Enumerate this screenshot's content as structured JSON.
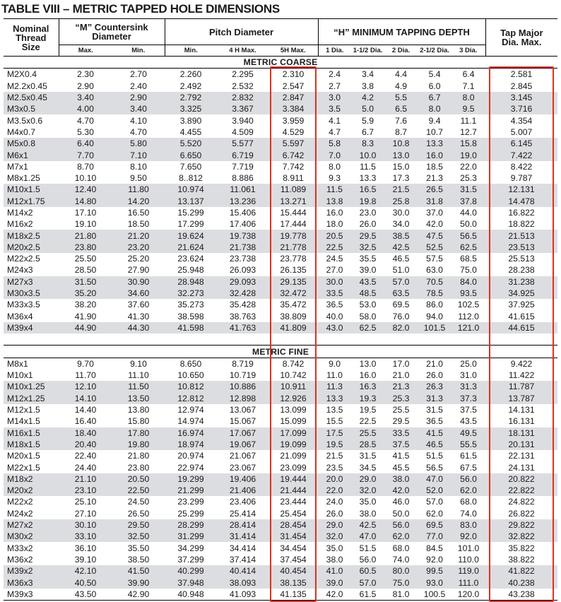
{
  "title": "TABLE VIII – METRIC TAPPED HOLE DIMENSIONS",
  "headers": {
    "nominal": "Nominal Thread Size",
    "countersink": "“M” Countersink Diameter",
    "pitch": "Pitch Diameter",
    "tapping": "“H” MINIMUM TAPPING DEPTH",
    "tap_major": "Tap Major Dia. Max.",
    "sub": [
      "Max.",
      "Min.",
      "Min.",
      "4 H Max.",
      "5H Max.",
      "1 Dia.",
      "1-1/2 Dia.",
      "2 Dia.",
      "2-1/2 Dia.",
      "3 Dia."
    ]
  },
  "sections": [
    {
      "label": "METRIC COARSE",
      "rows": [
        [
          "M2X0.4",
          "2.30",
          "2.70",
          "2.260",
          "2.295",
          "2.310",
          "2.4",
          "3.4",
          "4.4",
          "5.4",
          "6.4",
          "2.581"
        ],
        [
          "M2.2x0.45",
          "2.90",
          "2.40",
          "2.492",
          "2.532",
          "2.547",
          "2.7",
          "3.8",
          "4.9",
          "6.0",
          "7.1",
          "2.845"
        ],
        [
          "M2.5x0.45",
          "3.40",
          "2.90",
          "2.792",
          "2.832",
          "2.847",
          "3.0",
          "4.2",
          "5.5",
          "6.7",
          "8.0",
          "3.145"
        ],
        [
          "M3x0.5",
          "4.00",
          "3.40",
          "3.325",
          "3.367",
          "3.384",
          "3.5",
          "5.0",
          "6.5",
          "8.0",
          "9.5",
          "3.716"
        ],
        [
          "M3.5x0.6",
          "4.70",
          "4.10",
          "3.890",
          "3.940",
          "3.959",
          "4.1",
          "5.9",
          "7.6",
          "9.4",
          "11.1",
          "4.354"
        ],
        [
          "M4x0.7",
          "5.30",
          "4.70",
          "4.455",
          "4.509",
          "4.529",
          "4.7",
          "6.7",
          "8.7",
          "10.7",
          "12.7",
          "5.007"
        ],
        [
          "M5x0.8",
          "6.40",
          "5.80",
          "5.520",
          "5.577",
          "5.597",
          "5.8",
          "8.3",
          "10.8",
          "13.3",
          "15.8",
          "6.145"
        ],
        [
          "M6x1",
          "7.70",
          "7.10",
          "6.650",
          "6.719",
          "6.742",
          "7.0",
          "10.0",
          "13.0",
          "16.0",
          "19.0",
          "7.422"
        ],
        [
          "M7x1",
          "8.70",
          "8.10",
          "7.650",
          "7.719",
          "7.742",
          "8.0",
          "11.5",
          "15.0",
          "18.5",
          "22.0",
          "8.422"
        ],
        [
          "M8x1.25",
          "10.10",
          "9.50",
          "8..812",
          "8.886",
          "8.911",
          "9.3",
          "13.3",
          "17.3",
          "21.3",
          "25.3",
          "9.787"
        ],
        [
          "M10x1.5",
          "12.40",
          "11.80",
          "10.974",
          "11.061",
          "11.089",
          "11.5",
          "16.5",
          "21.5",
          "26.5",
          "31.5",
          "12.131"
        ],
        [
          "M12x1.75",
          "14.80",
          "14.20",
          "13.137",
          "13.236",
          "13.271",
          "13.8",
          "19.8",
          "25.8",
          "31.8",
          "37.8",
          "14.478"
        ],
        [
          "M14x2",
          "17.10",
          "16.50",
          "15.299",
          "15.406",
          "15.444",
          "16.0",
          "23.0",
          "30.0",
          "37.0",
          "44.0",
          "16.822"
        ],
        [
          "M16x2",
          "19.10",
          "18.50",
          "17.299",
          "17.406",
          "17.444",
          "18.0",
          "26.0",
          "34.0",
          "42.0",
          "50.0",
          "18.822"
        ],
        [
          "M18x2.5",
          "21.80",
          "21.20",
          "19.624",
          "19.738",
          "19.778",
          "20.5",
          "29.5",
          "38.5",
          "47.5",
          "56.5",
          "21.513"
        ],
        [
          "M20x2.5",
          "23.80",
          "23.20",
          "21.624",
          "21.738",
          "21.778",
          "22.5",
          "32.5",
          "42.5",
          "52.5",
          "62.5",
          "23.513"
        ],
        [
          "M22x2.5",
          "25.50",
          "25.20",
          "23.624",
          "23.738",
          "23.778",
          "24.5",
          "35.5",
          "46.5",
          "57.5",
          "68.5",
          "25.513"
        ],
        [
          "M24x3",
          "28.50",
          "27.90",
          "25.948",
          "26.093",
          "26.135",
          "27.0",
          "39.0",
          "51.0",
          "63.0",
          "75.0",
          "28.238"
        ],
        [
          "M27x3",
          "31.50",
          "30.90",
          "28.948",
          "29.093",
          "29.135",
          "30.0",
          "43.5",
          "57.0",
          "70.5",
          "84.0",
          "31.238"
        ],
        [
          "M30x3.5",
          "35.20",
          "34.60",
          "32.273",
          "32.428",
          "32.472",
          "33.5",
          "48.5",
          "63.5",
          "78.5",
          "93.5",
          "34.925"
        ],
        [
          "M33x3.5",
          "38.20",
          "37.60",
          "35.273",
          "35.428",
          "35.472",
          "36.5",
          "53.0",
          "69.5",
          "86.0",
          "102.5",
          "37.925"
        ],
        [
          "M36x4",
          "41.90",
          "41.30",
          "38.598",
          "38.763",
          "38.809",
          "40.0",
          "58.0",
          "76.0",
          "94.0",
          "112.0",
          "41.615"
        ],
        [
          "M39x4",
          "44.90",
          "44.30",
          "41.598",
          "41.763",
          "41.809",
          "43.0",
          "62.5",
          "82.0",
          "101.5",
          "121.0",
          "44.615"
        ]
      ]
    },
    {
      "label": "METRIC FINE",
      "rows": [
        [
          "M8x1",
          "9.70",
          "9.10",
          "8.650",
          "8.719",
          "8.742",
          "9.0",
          "13.0",
          "17.0",
          "21.0",
          "25.0",
          "9.422"
        ],
        [
          "M10x1",
          "11.70",
          "11.10",
          "10.650",
          "10.719",
          "10.742",
          "11.0",
          "16.0",
          "21.0",
          "26.0",
          "31.0",
          "11.422"
        ],
        [
          "M10x1.25",
          "12.10",
          "11.50",
          "10.812",
          "10.886",
          "10.911",
          "11.3",
          "16.3",
          "21.3",
          "26.3",
          "31.3",
          "11.787"
        ],
        [
          "M12x1.25",
          "14.10",
          "13.50",
          "12.812",
          "12.898",
          "12.926",
          "13.3",
          "19.3",
          "25.3",
          "31.3",
          "37.3",
          "13.787"
        ],
        [
          "M12x1.5",
          "14.40",
          "13.80",
          "12.974",
          "13.067",
          "13.099",
          "13.5",
          "19.5",
          "25.5",
          "31.5",
          "37.5",
          "14.131"
        ],
        [
          "M14x1.5",
          "16.40",
          "15.80",
          "14.974",
          "15.067",
          "15.099",
          "15.5",
          "22.5",
          "29.5",
          "36.5",
          "43.5",
          "16.131"
        ],
        [
          "M16x1.5",
          "18.40",
          "17.80",
          "16.974",
          "17.067",
          "17.099",
          "17.5",
          "25.5",
          "33.5",
          "41.5",
          "49.5",
          "18.131"
        ],
        [
          "M18x1.5",
          "20.40",
          "19.80",
          "18.974",
          "19.067",
          "19.099",
          "19.5",
          "28.5",
          "37.5",
          "46.5",
          "55.5",
          "20.131"
        ],
        [
          "M20x1.5",
          "22.40",
          "21.80",
          "20.974",
          "21.067",
          "21.099",
          "21.5",
          "31.5",
          "41.5",
          "51.5",
          "61.5",
          "22.131"
        ],
        [
          "M22x1.5",
          "24.40",
          "23.80",
          "22.974",
          "23.067",
          "23.099",
          "23.5",
          "34.5",
          "45.5",
          "56.5",
          "67.5",
          "24.131"
        ],
        [
          "M18x2",
          "21.10",
          "20.50",
          "19.299",
          "19.406",
          "19.444",
          "20.0",
          "29.0",
          "38.0",
          "47.0",
          "56.0",
          "20.822"
        ],
        [
          "M20x2",
          "23.10",
          "22.50",
          "21.299",
          "21.406",
          "21.444",
          "22.0",
          "32.0",
          "42.0",
          "52.0",
          "62.0",
          "22.822"
        ],
        [
          "M22x2",
          "25.10",
          "24.50",
          "23.299",
          "23.406",
          "23.444",
          "24.0",
          "35.0",
          "46.0",
          "57.0",
          "68.0",
          "24.822"
        ],
        [
          "M24x2",
          "27.10",
          "26.50",
          "25.299",
          "25.414",
          "25.454",
          "26.0",
          "38.0",
          "50.0",
          "62.0",
          "74.0",
          "26.822"
        ],
        [
          "M27x2",
          "30.10",
          "29.50",
          "28.299",
          "28.414",
          "28.454",
          "29.0",
          "42.5",
          "56.0",
          "69.5",
          "83.0",
          "29.822"
        ],
        [
          "M30x2",
          "33.10",
          "32.50",
          "31.299",
          "31.414",
          "31.454",
          "32.0",
          "47.0",
          "62.0",
          "77.0",
          "92.0",
          "32.822"
        ],
        [
          "M33x2",
          "36.10",
          "35.50",
          "34.299",
          "34.414",
          "34.454",
          "35.0",
          "51.5",
          "68.0",
          "84.5",
          "101.0",
          "35.822"
        ],
        [
          "M36x2",
          "39.10",
          "38.50",
          "37.299",
          "37.414",
          "37.454",
          "38.0",
          "56.0",
          "74.0",
          "92.0",
          "110.0",
          "38.822"
        ],
        [
          "M39x2",
          "42.10",
          "41.50",
          "40.299",
          "40.414",
          "40.454",
          "41.0",
          "60.5",
          "80.0",
          "99.5",
          "119.0",
          "41.822"
        ],
        [
          "M36x3",
          "40.50",
          "39.90",
          "37.948",
          "38.093",
          "38.135",
          "39.0",
          "57.0",
          "75.0",
          "93.0",
          "111.0",
          "40.238"
        ],
        [
          "M39x3",
          "43.50",
          "42.90",
          "40.948",
          "41.093",
          "41.135",
          "42.0",
          "61.5",
          "81.0",
          "100.5",
          "120.0",
          "43.238"
        ]
      ]
    }
  ],
  "shading": {
    "coarse_shaded_rows": [
      2,
      3,
      6,
      7,
      10,
      11,
      14,
      15,
      18,
      19,
      22
    ],
    "fine_shaded_rows": [
      2,
      3,
      6,
      7,
      10,
      11,
      14,
      15,
      18,
      19
    ],
    "shade_color": "#dcdde0"
  },
  "highlight_color": "#e0301e",
  "highlighted_columns": [
    "5H Max.",
    "Tap Major Dia. Max."
  ]
}
